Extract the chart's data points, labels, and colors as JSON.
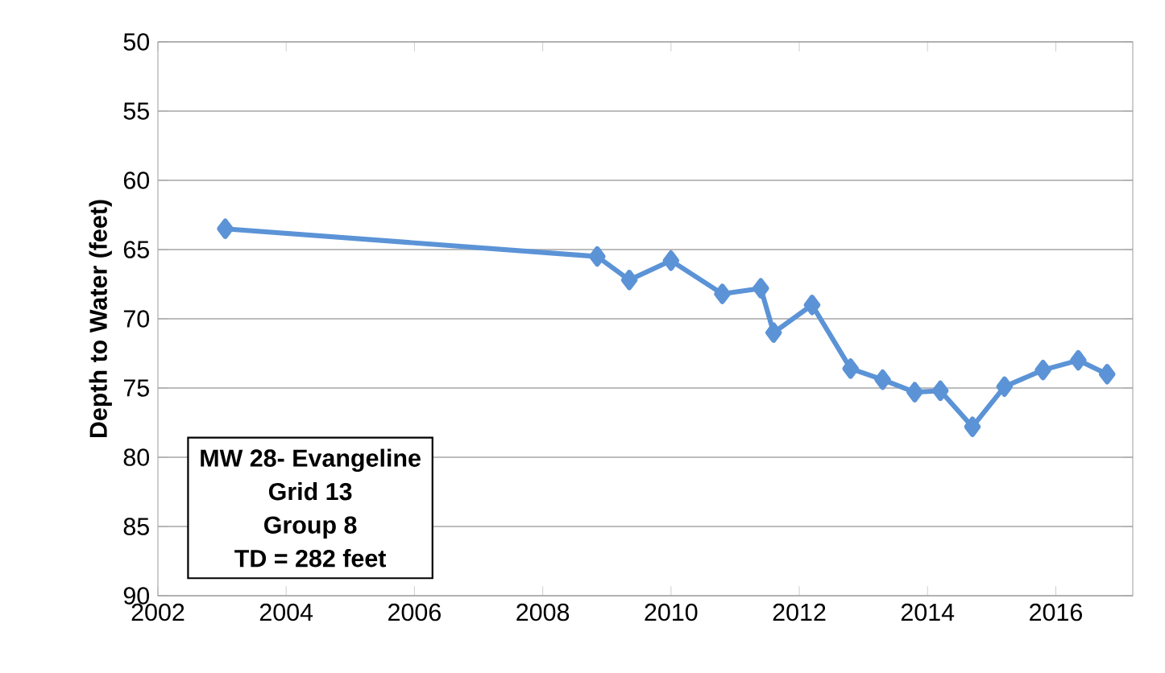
{
  "chart_data": {
    "type": "line",
    "ylabel": "Depth to Water (feet)",
    "annotations": [
      "MW 28- Evangeline",
      "Grid 13",
      "Group 8",
      "TD = 282 feet"
    ],
    "x": [
      2003.05,
      2008.85,
      2009.35,
      2010.0,
      2010.8,
      2011.4,
      2011.6,
      2012.2,
      2012.8,
      2013.3,
      2013.8,
      2014.2,
      2014.7,
      2015.2,
      2015.8,
      2016.35,
      2016.8
    ],
    "series": [
      {
        "color": "#5b93d6",
        "values": [
          63.5,
          65.5,
          67.2,
          65.8,
          68.2,
          67.8,
          71.0,
          69.0,
          73.6,
          74.4,
          75.3,
          75.2,
          77.8,
          74.9,
          73.7,
          73.0,
          74.0
        ]
      }
    ],
    "xlim": [
      2002,
      2017.2
    ],
    "xticks": [
      2002,
      2004,
      2006,
      2008,
      2010,
      2012,
      2014,
      2016
    ],
    "ylim": [
      90,
      50
    ],
    "yticks": [
      50,
      55,
      60,
      65,
      70,
      75,
      80,
      85,
      90
    ],
    "grid": "y",
    "marker": "diamond",
    "line_style": "solid"
  }
}
